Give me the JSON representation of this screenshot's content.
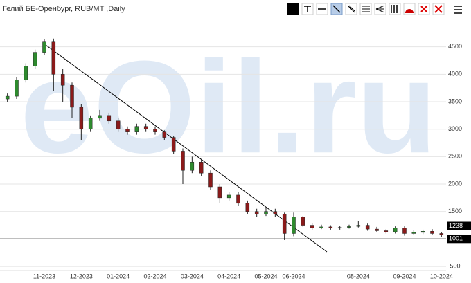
{
  "chart_data": {
    "type": "candlestick",
    "title": "Гелий БЕ-Оренбург, RUB/MT ,Daily",
    "watermark": "eOil.ru",
    "categories": [
      null,
      null,
      null,
      null,
      "11-2023",
      null,
      null,
      null,
      "12-2023",
      null,
      null,
      null,
      "01-2024",
      null,
      null,
      null,
      "02-2024",
      null,
      null,
      null,
      "03-2024",
      null,
      null,
      null,
      "04-2024",
      null,
      null,
      null,
      "05-2024",
      null,
      null,
      "06-2024",
      null,
      null,
      null,
      null,
      null,
      null,
      "08-2024",
      null,
      null,
      null,
      null,
      "09-2024",
      null,
      null,
      null,
      "10-2024"
    ],
    "open": [
      3550,
      3600,
      3900,
      4150,
      4400,
      4600,
      4000,
      3800,
      3400,
      3000,
      3200,
      3250,
      3150,
      3000,
      2950,
      3050,
      3000,
      2950,
      2850,
      2600,
      2250,
      2400,
      2200,
      1950,
      1750,
      1800,
      1650,
      1500,
      1450,
      1500,
      1450,
      1100,
      1400,
      1250,
      1200,
      1220,
      1200,
      1210,
      1230,
      1250,
      1180,
      1150,
      1130,
      1200,
      1100,
      1120,
      1140,
      1100
    ],
    "high": [
      3650,
      3950,
      4200,
      4450,
      4640,
      4650,
      4100,
      3850,
      3450,
      3250,
      3350,
      3300,
      3200,
      3050,
      3100,
      3100,
      3050,
      2980,
      2880,
      2650,
      2500,
      2450,
      2250,
      2000,
      1850,
      1850,
      1700,
      1550,
      1580,
      1550,
      1480,
      1480,
      1420,
      1290,
      1260,
      1250,
      1240,
      1260,
      1320,
      1280,
      1220,
      1180,
      1230,
      1230,
      1160,
      1170,
      1180,
      1130
    ],
    "low": [
      3500,
      3550,
      3850,
      4100,
      4350,
      3700,
      3500,
      3200,
      2800,
      2950,
      3150,
      3100,
      2950,
      2900,
      2900,
      2950,
      2900,
      2800,
      2550,
      2000,
      2200,
      2150,
      1900,
      1650,
      1700,
      1600,
      1450,
      1400,
      1420,
      1400,
      980,
      1050,
      1220,
      1170,
      1180,
      1170,
      1170,
      1190,
      1210,
      1150,
      1120,
      1100,
      1100,
      1060,
      1080,
      1090,
      1070,
      1040
    ],
    "close": [
      3600,
      3900,
      4150,
      4400,
      4600,
      4000,
      3800,
      3400,
      3000,
      3200,
      3250,
      3150,
      3000,
      2950,
      3050,
      3000,
      2950,
      2850,
      2600,
      2250,
      2400,
      2200,
      1950,
      1750,
      1800,
      1650,
      1500,
      1450,
      1500,
      1450,
      1100,
      1400,
      1250,
      1200,
      1220,
      1200,
      1210,
      1230,
      1250,
      1180,
      1150,
      1130,
      1200,
      1100,
      1120,
      1140,
      1100,
      1080
    ],
    "up_color": "#2e8b2e",
    "down_color": "#8b1a1a",
    "ylim": [
      400,
      5000
    ],
    "yticks": [
      500,
      1000,
      1500,
      2000,
      2500,
      3000,
      3500,
      4000,
      4500
    ],
    "grid": true,
    "levels": [
      1238,
      1001
    ]
  }
}
